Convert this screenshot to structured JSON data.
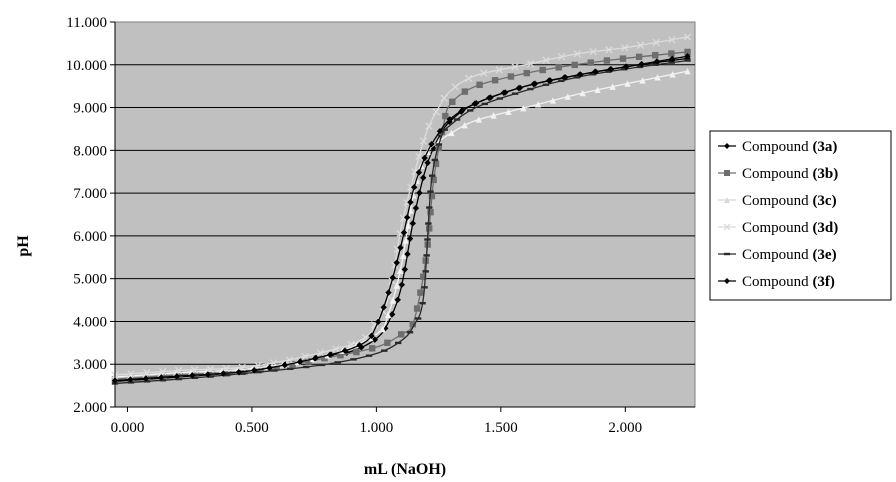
{
  "chart_data": {
    "type": "line",
    "title": "",
    "xlabel": "mL (NaOH)",
    "ylabel": "pH",
    "xlim": [
      -0.05,
      2.28
    ],
    "ylim": [
      2.0,
      11.0
    ],
    "x_ticks": [
      0.0,
      0.5,
      1.0,
      1.5,
      2.0
    ],
    "x_tick_labels": [
      "0.000",
      "0.500",
      "1.000",
      "1.500",
      "2.000"
    ],
    "y_ticks": [
      2,
      3,
      4,
      5,
      6,
      7,
      8,
      9,
      10,
      11
    ],
    "y_tick_labels": [
      "2.000",
      "3.000",
      "4.000",
      "5.000",
      "6.000",
      "7.000",
      "8.000",
      "9.000",
      "10.000",
      "11.000"
    ],
    "grid": "horizontal",
    "plot_background": "#c0c0c0",
    "legend_position": "right",
    "series": [
      {
        "name": "Compound (3a)",
        "name_prefix": "Compound ",
        "name_bold": "(3a)",
        "color": "#000000",
        "marker": "diamond",
        "x": [
          -0.05,
          0.2,
          0.5,
          0.8,
          0.9,
          1.0,
          1.05,
          1.1,
          1.15,
          1.2,
          1.25,
          1.3,
          1.4,
          1.6,
          1.8,
          2.0,
          2.25
        ],
        "y": [
          2.6,
          2.7,
          2.85,
          3.2,
          3.3,
          3.6,
          4.0,
          4.8,
          6.4,
          7.6,
          8.3,
          8.7,
          9.1,
          9.5,
          9.75,
          9.95,
          10.15
        ]
      },
      {
        "name": "Compound (3b)",
        "name_prefix": "Compound ",
        "name_bold": "(3b)",
        "color": "#6e6e6e",
        "marker": "square",
        "x": [
          -0.05,
          0.2,
          0.5,
          0.8,
          1.0,
          1.1,
          1.15,
          1.2,
          1.23,
          1.27,
          1.3,
          1.4,
          1.6,
          1.8,
          2.0,
          2.25
        ],
        "y": [
          2.65,
          2.75,
          2.85,
          3.15,
          3.4,
          3.7,
          4.0,
          5.5,
          7.3,
          8.6,
          9.1,
          9.5,
          9.8,
          10.0,
          10.15,
          10.3
        ]
      },
      {
        "name": "Compound (3c)",
        "name_prefix": "Compound ",
        "name_bold": "(3c)",
        "color": "#f2f2f2",
        "marker": "triangle",
        "x": [
          -0.05,
          0.2,
          0.5,
          0.8,
          1.0,
          1.05,
          1.1,
          1.15,
          1.2,
          1.25,
          1.3,
          1.4,
          1.6,
          1.8,
          2.0,
          2.25
        ],
        "y": [
          2.7,
          2.8,
          2.9,
          3.2,
          3.7,
          4.2,
          5.3,
          7.0,
          7.9,
          8.2,
          8.4,
          8.7,
          9.0,
          9.3,
          9.55,
          9.85
        ]
      },
      {
        "name": "Compound (3d)",
        "name_prefix": "Compound ",
        "name_bold": "(3d)",
        "color": "#dcdcdc",
        "marker": "cross",
        "x": [
          -0.05,
          0.2,
          0.5,
          0.8,
          0.95,
          1.0,
          1.05,
          1.1,
          1.15,
          1.2,
          1.25,
          1.3,
          1.4,
          1.6,
          1.8,
          2.0,
          2.25
        ],
        "y": [
          2.75,
          2.85,
          2.95,
          3.3,
          3.6,
          4.0,
          4.6,
          6.2,
          7.4,
          8.4,
          9.0,
          9.4,
          9.75,
          10.0,
          10.25,
          10.4,
          10.65
        ]
      },
      {
        "name": "Compound (3e)",
        "name_prefix": "Compound ",
        "name_bold": "(3e)",
        "color": "#2a2a2a",
        "marker": "dash",
        "x": [
          -0.05,
          0.2,
          0.5,
          0.8,
          1.0,
          1.1,
          1.15,
          1.19,
          1.22,
          1.26,
          1.3,
          1.4,
          1.6,
          1.8,
          2.0,
          2.25
        ],
        "y": [
          2.55,
          2.65,
          2.8,
          3.0,
          3.25,
          3.55,
          3.9,
          4.6,
          7.2,
          8.3,
          8.6,
          9.0,
          9.4,
          9.7,
          9.9,
          10.1
        ]
      },
      {
        "name": "Compound (3f)",
        "name_prefix": "Compound ",
        "name_bold": "(3f)",
        "color": "#000000",
        "marker": "diamond",
        "x": [
          -0.05,
          0.2,
          0.5,
          0.8,
          0.95,
          1.0,
          1.05,
          1.1,
          1.15,
          1.2,
          1.25,
          1.3,
          1.4,
          1.6,
          1.8,
          2.0,
          2.25
        ],
        "y": [
          2.62,
          2.72,
          2.85,
          3.2,
          3.5,
          3.9,
          4.7,
          5.8,
          7.1,
          7.9,
          8.4,
          8.75,
          9.1,
          9.5,
          9.75,
          9.95,
          10.2
        ]
      }
    ]
  }
}
